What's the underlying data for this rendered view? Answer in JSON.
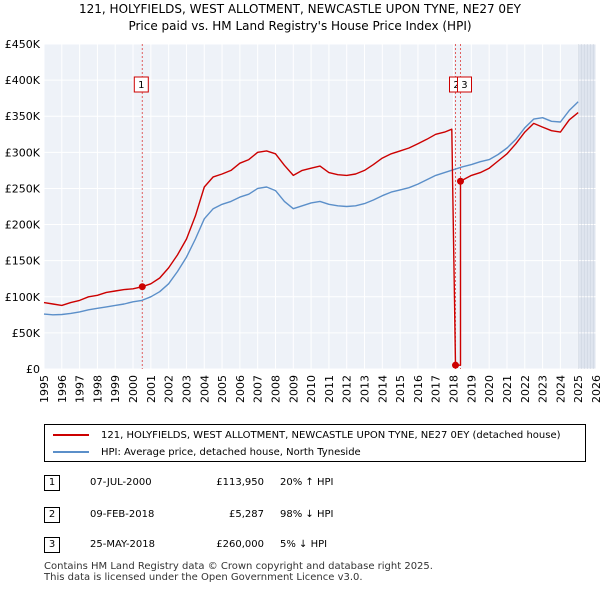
{
  "chart_data": {
    "type": "line",
    "title": "121, HOLYFIELDS, WEST ALLOTMENT, NEWCASTLE UPON TYNE, NE27 0EY",
    "subtitle": "Price paid vs. HM Land Registry's House Price Index (HPI)",
    "xlabel": "",
    "ylabel": "",
    "xlim": [
      1995,
      2026
    ],
    "ylim": [
      0,
      450000
    ],
    "x_ticks": [
      1995,
      1996,
      1997,
      1998,
      1999,
      2000,
      2001,
      2002,
      2003,
      2004,
      2005,
      2006,
      2007,
      2008,
      2009,
      2010,
      2011,
      2012,
      2013,
      2014,
      2015,
      2016,
      2017,
      2018,
      2019,
      2020,
      2021,
      2022,
      2023,
      2024,
      2025,
      2026
    ],
    "y_ticks": [
      0,
      50000,
      100000,
      150000,
      200000,
      250000,
      300000,
      350000,
      400000,
      450000
    ],
    "y_tick_labels": [
      "£0",
      "£50K",
      "£100K",
      "£150K",
      "£200K",
      "£250K",
      "£300K",
      "£350K",
      "£400K",
      "£450K"
    ],
    "grid": true,
    "future_shade_from": 2025.0,
    "series": [
      {
        "name": "121, HOLYFIELDS, WEST ALLOTMENT, NEWCASTLE UPON TYNE, NE27 0EY (detached house)",
        "color": "#cc0000",
        "x": [
          1995.0,
          1995.5,
          1996.0,
          1996.5,
          1997.0,
          1997.5,
          1998.0,
          1998.5,
          1999.0,
          1999.5,
          2000.0,
          2000.52,
          2001.0,
          2001.5,
          2002.0,
          2002.5,
          2003.0,
          2003.5,
          2004.0,
          2004.5,
          2005.0,
          2005.5,
          2006.0,
          2006.5,
          2007.0,
          2007.5,
          2008.0,
          2008.5,
          2009.0,
          2009.5,
          2010.0,
          2010.5,
          2011.0,
          2011.5,
          2012.0,
          2012.5,
          2013.0,
          2013.5,
          2014.0,
          2014.5,
          2015.0,
          2015.5,
          2016.0,
          2016.5,
          2017.0,
          2017.5,
          2017.9,
          2018.11,
          2018.11,
          2018.39,
          2018.39,
          2018.7,
          2019.0,
          2019.5,
          2020.0,
          2020.5,
          2021.0,
          2021.5,
          2022.0,
          2022.5,
          2023.0,
          2023.5,
          2024.0,
          2024.5,
          2025.0
        ],
        "values": [
          92000,
          90000,
          88000,
          92000,
          95000,
          100000,
          102000,
          106000,
          108000,
          110000,
          111000,
          113950,
          118000,
          126000,
          140000,
          158000,
          180000,
          212000,
          252000,
          266000,
          270000,
          275000,
          285000,
          290000,
          300000,
          302000,
          298000,
          282000,
          268000,
          275000,
          278000,
          281000,
          272000,
          269000,
          268000,
          270000,
          275000,
          283000,
          292000,
          298000,
          302000,
          306000,
          312000,
          318000,
          325000,
          328000,
          332000,
          5287,
          5287,
          5287,
          260000,
          264000,
          268000,
          272000,
          278000,
          288000,
          298000,
          312000,
          328000,
          340000,
          335000,
          330000,
          328000,
          345000,
          355000
        ]
      },
      {
        "name": "HPI: Average price, detached house, North Tyneside",
        "color": "#5b8fc9",
        "x": [
          1995.0,
          1995.5,
          1996.0,
          1996.5,
          1997.0,
          1997.5,
          1998.0,
          1998.5,
          1999.0,
          1999.5,
          2000.0,
          2000.5,
          2001.0,
          2001.5,
          2002.0,
          2002.5,
          2003.0,
          2003.5,
          2004.0,
          2004.5,
          2005.0,
          2005.5,
          2006.0,
          2006.5,
          2007.0,
          2007.5,
          2008.0,
          2008.5,
          2009.0,
          2009.5,
          2010.0,
          2010.5,
          2011.0,
          2011.5,
          2012.0,
          2012.5,
          2013.0,
          2013.5,
          2014.0,
          2014.5,
          2015.0,
          2015.5,
          2016.0,
          2016.5,
          2017.0,
          2017.5,
          2018.0,
          2018.5,
          2019.0,
          2019.5,
          2020.0,
          2020.5,
          2021.0,
          2021.5,
          2022.0,
          2022.5,
          2023.0,
          2023.5,
          2024.0,
          2024.5,
          2025.0
        ],
        "values": [
          76000,
          75000,
          75500,
          77000,
          79000,
          82000,
          84000,
          86000,
          88000,
          90000,
          93000,
          95000,
          100000,
          107000,
          118000,
          135000,
          155000,
          180000,
          208000,
          222000,
          228000,
          232000,
          238000,
          242000,
          250000,
          252000,
          247000,
          232000,
          222000,
          226000,
          230000,
          232000,
          228000,
          226000,
          225000,
          226000,
          229000,
          234000,
          240000,
          245000,
          248000,
          251000,
          256000,
          262000,
          268000,
          272000,
          276000,
          280000,
          283000,
          287000,
          290000,
          297000,
          306000,
          318000,
          334000,
          346000,
          348000,
          343000,
          342000,
          358000,
          370000
        ]
      }
    ],
    "annotations": [
      {
        "label": "1",
        "x": 2000.52
      },
      {
        "label": "2",
        "x": 2018.11
      },
      {
        "label": "3",
        "x": 2018.39
      }
    ],
    "sale_points": [
      {
        "x": 2000.52,
        "y": 113950
      },
      {
        "x": 2018.11,
        "y": 5287
      },
      {
        "x": 2018.39,
        "y": 260000
      }
    ]
  },
  "legend": {
    "series1_label": "121, HOLYFIELDS, WEST ALLOTMENT, NEWCASTLE UPON TYNE, NE27 0EY (detached house)",
    "series2_label": "HPI: Average price, detached house, North Tyneside"
  },
  "transactions": [
    {
      "num": "1",
      "date": "07-JUL-2000",
      "price": "£113,950",
      "hpi": "20% ↑ HPI"
    },
    {
      "num": "2",
      "date": "09-FEB-2018",
      "price": "£5,287",
      "hpi": "98% ↓ HPI"
    },
    {
      "num": "3",
      "date": "25-MAY-2018",
      "price": "£260,000",
      "hpi": "5% ↓ HPI"
    }
  ],
  "footer": {
    "line1": "Contains HM Land Registry data © Crown copyright and database right 2025.",
    "line2": "This data is licensed under the Open Government Licence v3.0."
  }
}
